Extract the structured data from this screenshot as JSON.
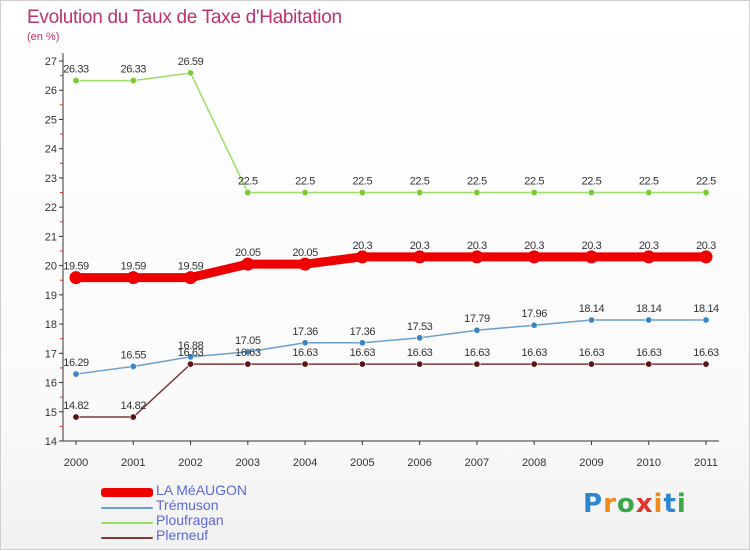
{
  "title": "Evolution du Taux de Taxe d'Habitation",
  "subtitle": "(en %)",
  "chart_data": {
    "type": "line",
    "x": [
      "2000",
      "2001",
      "2002",
      "2003",
      "2004",
      "2005",
      "2006",
      "2007",
      "2008",
      "2009",
      "2010",
      "2011"
    ],
    "yticks": [
      "14",
      "15",
      "16",
      "17",
      "18",
      "19",
      "20",
      "21",
      "22",
      "23",
      "24",
      "25",
      "26",
      "27"
    ],
    "ylim": [
      14,
      27
    ],
    "grid": false,
    "legend_position": "bottom-left",
    "series": [
      {
        "name": "LA MéAUGON",
        "color": "#ee0000",
        "marker_color": "#ee0000",
        "style": "thick",
        "values": [
          19.59,
          19.59,
          19.59,
          20.05,
          20.05,
          20.3,
          20.3,
          20.3,
          20.3,
          20.3,
          20.3,
          20.3
        ],
        "labels": [
          "19.59",
          "19.59",
          "19.59",
          "20.05",
          "20.05",
          "20.3",
          "20.3",
          "20.3",
          "20.3",
          "20.3",
          "20.3",
          "20.3"
        ]
      },
      {
        "name": "Trémuson",
        "color": "#6a9fd0",
        "marker_color": "#3a86c4",
        "style": "thin",
        "values": [
          16.29,
          16.55,
          16.88,
          17.05,
          17.36,
          17.36,
          17.53,
          17.79,
          17.96,
          18.14,
          18.14,
          18.14
        ],
        "labels": [
          "16.29",
          "16.55",
          "16.88",
          "17.05",
          "17.36",
          "17.36",
          "17.53",
          "17.79",
          "17.96",
          "18.14",
          "18.14",
          "18.14"
        ]
      },
      {
        "name": "Ploufragan",
        "color": "#99dd66",
        "marker_color": "#77cc33",
        "style": "thin",
        "values": [
          26.33,
          26.33,
          26.59,
          22.5,
          22.5,
          22.5,
          22.5,
          22.5,
          22.5,
          22.5,
          22.5,
          22.5
        ],
        "labels": [
          "26.33",
          "26.33",
          "26.59",
          "22.5",
          "22.5",
          "22.5",
          "22.5",
          "22.5",
          "22.5",
          "22.5",
          "22.5",
          "22.5"
        ]
      },
      {
        "name": "Plerneuf",
        "color": "#7a3a3a",
        "marker_color": "#5a1515",
        "style": "thin",
        "values": [
          14.82,
          14.82,
          16.63,
          16.63,
          16.63,
          16.63,
          16.63,
          16.63,
          16.63,
          16.63,
          16.63,
          16.63
        ],
        "labels": [
          "14.82",
          "14.82",
          "16.63",
          "16.63",
          "16.63",
          "16.63",
          "16.63",
          "16.63",
          "16.63",
          "16.63",
          "16.63",
          "16.63"
        ]
      }
    ]
  },
  "logo": {
    "letters": [
      "P",
      "r",
      "o",
      "x",
      "i",
      "t",
      "i"
    ],
    "colors": [
      "#2f86d0",
      "#f08a1c",
      "#3aa84a",
      "#e0342c",
      "#f08a1c",
      "#2f86d0",
      "#3aa84a"
    ]
  }
}
